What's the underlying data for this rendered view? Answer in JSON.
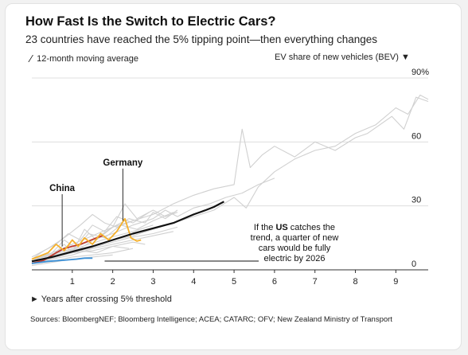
{
  "header": {
    "title": "How Fast Is the Switch to Electric Cars?",
    "subtitle": "23 countries have reached the 5% tipping point—then everything changes"
  },
  "legend": {
    "moving_average_icon": "slash-icon",
    "moving_average_label": "12-month moving average",
    "y_axis_label": "EV share of new vehicles (BEV) ▼"
  },
  "x_note": "► Years after crossing 5% threshold",
  "sources": "Sources: BloombergNEF; Bloomberg Intelligence; ACEA; CATARC; OFV; New Zealand Ministry of Transport",
  "colors": {
    "china": "#c0392b",
    "germany": "#f5b02b",
    "projection": "#111111",
    "us": "#3a8fd6",
    "other": "#d0d0d0",
    "gridline": "#d9d9d9"
  },
  "chart_data": {
    "type": "line",
    "title": "How Fast Is the Switch to Electric Cars?",
    "xlabel": "Years after crossing 5% threshold",
    "ylabel": "EV share of new vehicles (BEV)",
    "xlim": [
      0,
      9.8
    ],
    "ylim": [
      0,
      90
    ],
    "x_ticks": [
      {
        "value": 1,
        "label": "1"
      },
      {
        "value": 2,
        "label": "2"
      },
      {
        "value": 3,
        "label": "3"
      },
      {
        "value": 4,
        "label": "4"
      },
      {
        "value": 5,
        "label": "5"
      },
      {
        "value": 6,
        "label": "6"
      },
      {
        "value": 7,
        "label": "7"
      },
      {
        "value": 8,
        "label": "8"
      },
      {
        "value": 9,
        "label": "9"
      }
    ],
    "y_ticks": [
      {
        "value": 0,
        "label": "0"
      },
      {
        "value": 30,
        "label": "30"
      },
      {
        "value": 60,
        "label": "60"
      },
      {
        "value": 90,
        "label": "90%"
      }
    ],
    "grid": true,
    "highlight_series": [
      {
        "name": "China",
        "label": "China",
        "color": "#c0392b",
        "points": [
          [
            0,
            3
          ],
          [
            0.3,
            4.5
          ],
          [
            0.6,
            8
          ],
          [
            0.8,
            10
          ],
          [
            1.0,
            11
          ],
          [
            1.2,
            12
          ],
          [
            1.4,
            13.5
          ],
          [
            1.6,
            15
          ],
          [
            1.75,
            16
          ]
        ]
      },
      {
        "name": "Germany",
        "label": "Germany",
        "color": "#f5b02b",
        "points": [
          [
            0,
            5
          ],
          [
            0.2,
            6.5
          ],
          [
            0.4,
            8
          ],
          [
            0.6,
            12
          ],
          [
            0.8,
            9
          ],
          [
            1.0,
            14
          ],
          [
            1.15,
            11
          ],
          [
            1.3,
            15
          ],
          [
            1.5,
            12
          ],
          [
            1.7,
            17
          ],
          [
            1.9,
            14
          ],
          [
            2.1,
            18
          ],
          [
            2.3,
            24
          ],
          [
            2.45,
            15
          ],
          [
            2.6,
            13.5
          ],
          [
            2.7,
            14
          ]
        ]
      },
      {
        "name": "US",
        "label": "",
        "color": "#3a8fd6",
        "points": [
          [
            0,
            3
          ],
          [
            0.4,
            4
          ],
          [
            0.8,
            4.5
          ],
          [
            1.1,
            5
          ],
          [
            1.3,
            5.5
          ],
          [
            1.5,
            5.5
          ]
        ]
      }
    ],
    "projection": {
      "name": "Projection",
      "color": "#111111",
      "points": [
        [
          0,
          4
        ],
        [
          0.5,
          6
        ],
        [
          1.0,
          8.5
        ],
        [
          1.5,
          11
        ],
        [
          2.0,
          14
        ],
        [
          2.5,
          17
        ],
        [
          3.0,
          19.5
        ],
        [
          3.5,
          22
        ],
        [
          4.0,
          26
        ],
        [
          4.3,
          28
        ],
        [
          4.5,
          29.5
        ],
        [
          4.75,
          32
        ]
      ]
    },
    "other_series": [
      {
        "points": [
          [
            0,
            5
          ],
          [
            0.5,
            8
          ],
          [
            1,
            12
          ],
          [
            1.5,
            16
          ],
          [
            2,
            20
          ],
          [
            2.5,
            23
          ],
          [
            3,
            26
          ],
          [
            3.5,
            31
          ],
          [
            4,
            35
          ],
          [
            4.5,
            38
          ],
          [
            5,
            40
          ],
          [
            5.2,
            66
          ],
          [
            5.4,
            48
          ],
          [
            5.7,
            54
          ],
          [
            6,
            58
          ],
          [
            6.5,
            53
          ],
          [
            7,
            60
          ],
          [
            7.5,
            56
          ],
          [
            8,
            62
          ],
          [
            8.3,
            64
          ],
          [
            8.6,
            68
          ],
          [
            8.9,
            72
          ],
          [
            9.2,
            66
          ],
          [
            9.5,
            81
          ],
          [
            9.8,
            79
          ]
        ]
      },
      {
        "points": [
          [
            0,
            4
          ],
          [
            0.5,
            6
          ],
          [
            1,
            9
          ],
          [
            1.5,
            11
          ],
          [
            2,
            14
          ],
          [
            2.5,
            16
          ],
          [
            3,
            19
          ],
          [
            3.5,
            22
          ],
          [
            4,
            25
          ],
          [
            4.5,
            28
          ],
          [
            5,
            34
          ],
          [
            5.3,
            29
          ],
          [
            5.6,
            39
          ],
          [
            6,
            46
          ],
          [
            6.5,
            52
          ],
          [
            7,
            56
          ],
          [
            7.5,
            58
          ],
          [
            8,
            64
          ],
          [
            8.5,
            68
          ],
          [
            9,
            76
          ],
          [
            9.3,
            73
          ],
          [
            9.6,
            82
          ],
          [
            9.8,
            80
          ]
        ]
      },
      {
        "points": [
          [
            0,
            5
          ],
          [
            0.5,
            7
          ],
          [
            1,
            10
          ],
          [
            1.5,
            14
          ],
          [
            2,
            17
          ],
          [
            2.5,
            21
          ],
          [
            3,
            24
          ],
          [
            3.3,
            28
          ],
          [
            3.6,
            25
          ],
          [
            4,
            29
          ],
          [
            4.4,
            31
          ],
          [
            4.8,
            34
          ],
          [
            5.2,
            36
          ],
          [
            5.6,
            40
          ],
          [
            6,
            43
          ]
        ]
      },
      {
        "points": [
          [
            0,
            3
          ],
          [
            0.4,
            5
          ],
          [
            0.8,
            12
          ],
          [
            1,
            8
          ],
          [
            1.3,
            19
          ],
          [
            1.6,
            14
          ],
          [
            2,
            20
          ],
          [
            2.4,
            24
          ],
          [
            2.8,
            22
          ],
          [
            3,
            27
          ],
          [
            3.3,
            24
          ],
          [
            3.6,
            28
          ]
        ]
      },
      {
        "points": [
          [
            0,
            4
          ],
          [
            0.5,
            8
          ],
          [
            0.8,
            14
          ],
          [
            1.1,
            10
          ],
          [
            1.4,
            17
          ],
          [
            1.8,
            15
          ],
          [
            2.2,
            21
          ],
          [
            2.6,
            19
          ],
          [
            3,
            23
          ],
          [
            3.5,
            27
          ]
        ]
      },
      {
        "points": [
          [
            0,
            5
          ],
          [
            0.6,
            7
          ],
          [
            1.2,
            10
          ],
          [
            1.6,
            15
          ],
          [
            2,
            20
          ],
          [
            2.3,
            31
          ],
          [
            2.6,
            24
          ],
          [
            3,
            28
          ],
          [
            3.3,
            25
          ],
          [
            3.6,
            27
          ]
        ]
      },
      {
        "points": [
          [
            0,
            3
          ],
          [
            0.5,
            5
          ],
          [
            1,
            7
          ],
          [
            1.5,
            10
          ],
          [
            2,
            12
          ],
          [
            2.5,
            14
          ],
          [
            3,
            16
          ],
          [
            3.5,
            18
          ]
        ]
      },
      {
        "points": [
          [
            0,
            4
          ],
          [
            0.5,
            6
          ],
          [
            1,
            8
          ],
          [
            1.5,
            9
          ],
          [
            2,
            11
          ],
          [
            2.5,
            13
          ],
          [
            2.8,
            12
          ]
        ]
      },
      {
        "points": [
          [
            0,
            5
          ],
          [
            0.3,
            9
          ],
          [
            0.6,
            12
          ],
          [
            0.9,
            17
          ],
          [
            1.2,
            14
          ],
          [
            1.5,
            21
          ],
          [
            1.8,
            18
          ],
          [
            2.1,
            25
          ],
          [
            2.5,
            22
          ],
          [
            2.9,
            27
          ]
        ]
      },
      {
        "points": [
          [
            0,
            3
          ],
          [
            0.5,
            4
          ],
          [
            1,
            6
          ],
          [
            1.5,
            7
          ],
          [
            2,
            8
          ],
          [
            2.5,
            10
          ]
        ]
      },
      {
        "points": [
          [
            0,
            2
          ],
          [
            0.5,
            3.5
          ],
          [
            1,
            5
          ],
          [
            1.5,
            6
          ],
          [
            2,
            7
          ]
        ]
      },
      {
        "points": [
          [
            0,
            4
          ],
          [
            0.4,
            5
          ],
          [
            0.8,
            7
          ],
          [
            1.2,
            9
          ],
          [
            1.6,
            8
          ],
          [
            2,
            11
          ],
          [
            2.4,
            10
          ]
        ]
      },
      {
        "points": [
          [
            0,
            3.5
          ],
          [
            0.6,
            6
          ],
          [
            1.2,
            9
          ],
          [
            1.8,
            12
          ],
          [
            2.4,
            15
          ],
          [
            3,
            17
          ],
          [
            3.6,
            20
          ]
        ]
      },
      {
        "points": [
          [
            0,
            6
          ],
          [
            0.4,
            10
          ],
          [
            0.8,
            15
          ],
          [
            1.2,
            21
          ],
          [
            1.5,
            26
          ],
          [
            1.8,
            22
          ],
          [
            2.1,
            20
          ],
          [
            2.5,
            23
          ]
        ]
      },
      {
        "points": [
          [
            0,
            5
          ],
          [
            0.5,
            7.5
          ],
          [
            1,
            9.5
          ],
          [
            1.5,
            12.5
          ],
          [
            2,
            15.5
          ],
          [
            2.5,
            18
          ],
          [
            3,
            21
          ]
        ]
      }
    ],
    "annotations": [
      {
        "target": "China",
        "text": "China",
        "anchor": [
          0.75,
          11
        ],
        "label_at": [
          0.75,
          37
        ]
      },
      {
        "target": "Germany",
        "text": "Germany",
        "anchor": [
          2.25,
          23
        ],
        "label_at": [
          2.25,
          49
        ]
      },
      {
        "target": "US",
        "text_parts": [
          "If the ",
          "US",
          " catches the"
        ],
        "lines": [
          "trend, a quarter of new",
          "cars would be fully",
          "electric by 2026"
        ],
        "bold": "US",
        "anchor": [
          1.8,
          4
        ],
        "label_at": [
          5.7,
          9
        ]
      }
    ]
  }
}
